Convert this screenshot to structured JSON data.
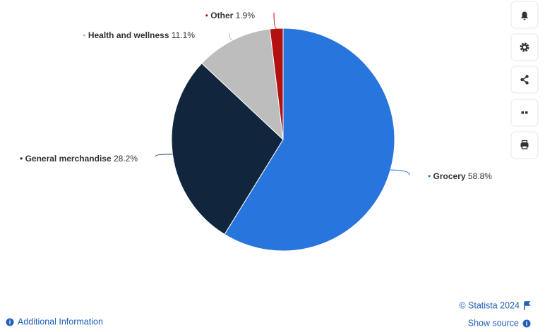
{
  "chart_data": {
    "type": "pie",
    "categories": [
      "Grocery",
      "General merchandise",
      "Health and wellness",
      "Other"
    ],
    "values": [
      58.8,
      28.2,
      11.1,
      1.9
    ],
    "value_labels": [
      "58.8%",
      "28.2%",
      "11.1%",
      "1.9%"
    ],
    "colors": [
      "#2876dd",
      "#11263d",
      "#bdbdbd",
      "#b3110f"
    ]
  },
  "footer": {
    "copyright": "© Statista 2024",
    "additional": "Additional Information",
    "source": "Show source"
  }
}
